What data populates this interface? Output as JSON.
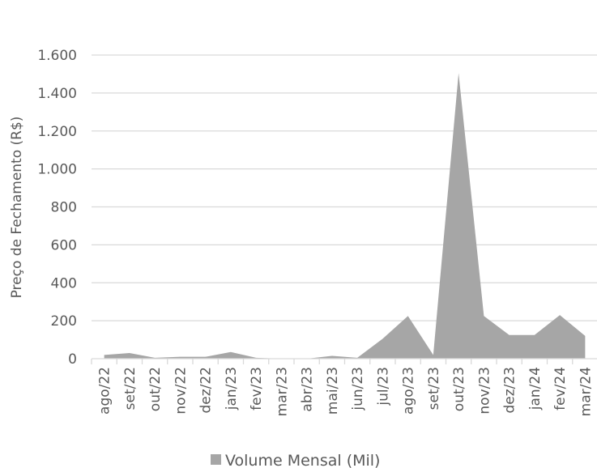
{
  "chart_data": {
    "type": "area",
    "categories": [
      "ago/22",
      "set/22",
      "out/22",
      "nov/22",
      "dez/22",
      "jan/23",
      "fev/23",
      "mar/23",
      "abr/23",
      "mai/23",
      "jun/23",
      "jul/23",
      "ago/23",
      "set/23",
      "out/23",
      "nov/23",
      "dez/23",
      "jan/24",
      "fev/24",
      "mar/24"
    ],
    "series": [
      {
        "name": "Volume Mensal (Mil)",
        "values": [
          20,
          30,
          5,
          10,
          10,
          35,
          5,
          0,
          0,
          15,
          5,
          105,
          225,
          20,
          1505,
          225,
          125,
          125,
          230,
          120
        ]
      }
    ],
    "title": "",
    "xlabel": "",
    "ylabel": "Preço de Fechamento (R$)",
    "ylim": [
      0,
      1600
    ],
    "yticks": [
      0,
      200,
      400,
      600,
      800,
      1000,
      1200,
      1400,
      1600
    ],
    "ytick_labels": [
      "0",
      "200",
      "400",
      "600",
      "800",
      "1.000",
      "1.200",
      "1.400",
      "1.600"
    ],
    "grid": true,
    "legend": "bottom",
    "colors": {
      "area": "#a6a6a6",
      "grid": "#d9d9d9",
      "text": "#595959"
    }
  }
}
